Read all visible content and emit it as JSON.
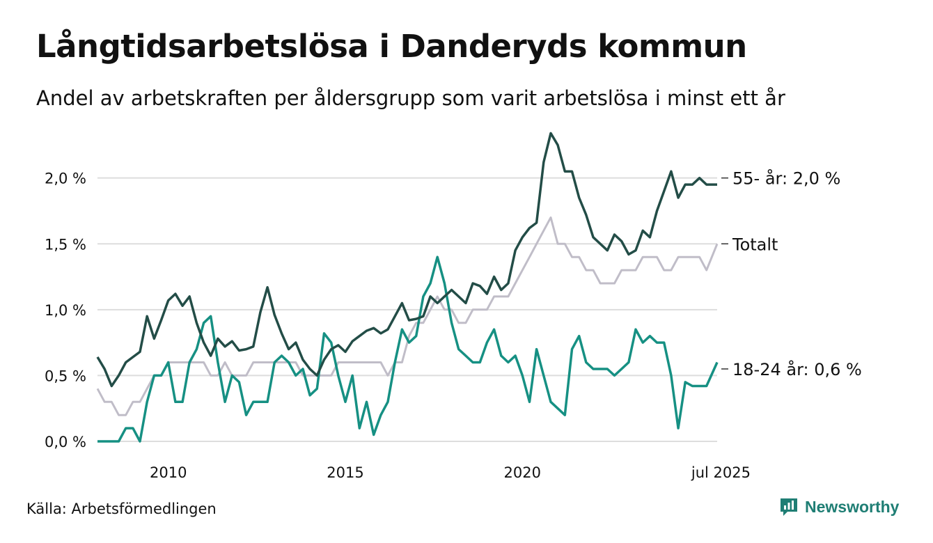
{
  "title": "Långtidsarbetslösa i Danderyds kommun",
  "subtitle": "Andel av arbetskraften per åldersgrupp som varit arbetslösa i minst ett år",
  "source": "Källa: Arbetsförmedlingen",
  "brand": "Newsworthy",
  "colors": {
    "s55": "#234d47",
    "total": "#c0bdc8",
    "s1824": "#169083",
    "grid": "#dddddd",
    "brand": "#1f7e74"
  },
  "chart_data": {
    "type": "line",
    "xlim": [
      2008.0,
      2025.5
    ],
    "ylim": [
      0,
      2.4
    ],
    "yticks": [
      {
        "value": 0.0,
        "label": "0,0 %"
      },
      {
        "value": 0.5,
        "label": "0,5 %"
      },
      {
        "value": 1.0,
        "label": "1,0 %"
      },
      {
        "value": 1.5,
        "label": "1,5 %"
      },
      {
        "value": 2.0,
        "label": "2,0 %"
      }
    ],
    "xticks": [
      {
        "value": 2010,
        "label": "2010"
      },
      {
        "value": 2015,
        "label": "2015"
      },
      {
        "value": 2020,
        "label": "2020"
      },
      {
        "value": 2025.5,
        "label": "jul 2025"
      }
    ],
    "grid": true,
    "series": [
      {
        "key": "s55",
        "end_label": "55- år: 2,0 %",
        "x": [
          2008.0,
          2008.2,
          2008.4,
          2008.6,
          2008.8,
          2009.0,
          2009.2,
          2009.4,
          2009.6,
          2009.8,
          2010.0,
          2010.2,
          2010.4,
          2010.6,
          2010.8,
          2011.0,
          2011.2,
          2011.4,
          2011.6,
          2011.8,
          2012.0,
          2012.2,
          2012.4,
          2012.6,
          2012.8,
          2013.0,
          2013.2,
          2013.4,
          2013.6,
          2013.8,
          2014.0,
          2014.2,
          2014.4,
          2014.6,
          2014.8,
          2015.0,
          2015.2,
          2015.4,
          2015.6,
          2015.8,
          2016.0,
          2016.2,
          2016.4,
          2016.6,
          2016.8,
          2017.0,
          2017.2,
          2017.4,
          2017.6,
          2017.8,
          2018.0,
          2018.2,
          2018.4,
          2018.6,
          2018.8,
          2019.0,
          2019.2,
          2019.4,
          2019.6,
          2019.8,
          2020.0,
          2020.2,
          2020.4,
          2020.6,
          2020.8,
          2021.0,
          2021.2,
          2021.4,
          2021.6,
          2021.8,
          2022.0,
          2022.2,
          2022.4,
          2022.6,
          2022.8,
          2023.0,
          2023.2,
          2023.4,
          2023.6,
          2023.8,
          2024.0,
          2024.2,
          2024.4,
          2024.6,
          2024.8,
          2025.0,
          2025.2,
          2025.5
        ],
        "y": [
          0.64,
          0.55,
          0.42,
          0.5,
          0.6,
          0.64,
          0.68,
          0.95,
          0.78,
          0.92,
          1.07,
          1.12,
          1.03,
          1.1,
          0.9,
          0.75,
          0.65,
          0.78,
          0.72,
          0.76,
          0.69,
          0.7,
          0.72,
          0.98,
          1.17,
          0.96,
          0.82,
          0.7,
          0.75,
          0.62,
          0.55,
          0.5,
          0.62,
          0.7,
          0.73,
          0.68,
          0.76,
          0.8,
          0.84,
          0.86,
          0.82,
          0.85,
          0.95,
          1.05,
          0.92,
          0.93,
          0.95,
          1.1,
          1.05,
          1.1,
          1.15,
          1.1,
          1.05,
          1.2,
          1.18,
          1.12,
          1.25,
          1.15,
          1.2,
          1.45,
          1.55,
          1.62,
          1.66,
          2.12,
          2.34,
          2.25,
          2.05,
          2.05,
          1.85,
          1.72,
          1.55,
          1.5,
          1.45,
          1.57,
          1.52,
          1.42,
          1.45,
          1.6,
          1.55,
          1.75,
          1.9,
          2.05,
          1.85,
          1.95,
          1.95,
          2.0,
          1.95,
          1.95
        ]
      },
      {
        "key": "total",
        "end_label": "Totalt",
        "x": [
          2008.0,
          2008.2,
          2008.4,
          2008.6,
          2008.8,
          2009.0,
          2009.2,
          2009.4,
          2009.6,
          2009.8,
          2010.0,
          2010.2,
          2010.4,
          2010.6,
          2010.8,
          2011.0,
          2011.2,
          2011.4,
          2011.6,
          2011.8,
          2012.0,
          2012.2,
          2012.4,
          2012.6,
          2012.8,
          2013.0,
          2013.2,
          2013.4,
          2013.6,
          2013.8,
          2014.0,
          2014.2,
          2014.4,
          2014.6,
          2014.8,
          2015.0,
          2015.2,
          2015.4,
          2015.6,
          2015.8,
          2016.0,
          2016.2,
          2016.4,
          2016.6,
          2016.8,
          2017.0,
          2017.2,
          2017.4,
          2017.6,
          2017.8,
          2018.0,
          2018.2,
          2018.4,
          2018.6,
          2018.8,
          2019.0,
          2019.2,
          2019.4,
          2019.6,
          2019.8,
          2020.0,
          2020.2,
          2020.4,
          2020.6,
          2020.8,
          2021.0,
          2021.2,
          2021.4,
          2021.6,
          2021.8,
          2022.0,
          2022.2,
          2022.4,
          2022.6,
          2022.8,
          2023.0,
          2023.2,
          2023.4,
          2023.6,
          2023.8,
          2024.0,
          2024.2,
          2024.4,
          2024.6,
          2024.8,
          2025.0,
          2025.2,
          2025.5
        ],
        "y": [
          0.4,
          0.3,
          0.3,
          0.2,
          0.2,
          0.3,
          0.3,
          0.4,
          0.5,
          0.5,
          0.6,
          0.6,
          0.6,
          0.6,
          0.6,
          0.6,
          0.5,
          0.5,
          0.6,
          0.5,
          0.5,
          0.5,
          0.6,
          0.6,
          0.6,
          0.6,
          0.6,
          0.6,
          0.6,
          0.5,
          0.5,
          0.5,
          0.5,
          0.5,
          0.6,
          0.6,
          0.6,
          0.6,
          0.6,
          0.6,
          0.6,
          0.5,
          0.6,
          0.6,
          0.8,
          0.9,
          0.9,
          1.0,
          1.1,
          1.0,
          1.0,
          0.9,
          0.9,
          1.0,
          1.0,
          1.0,
          1.1,
          1.1,
          1.1,
          1.2,
          1.3,
          1.4,
          1.5,
          1.6,
          1.7,
          1.5,
          1.5,
          1.4,
          1.4,
          1.3,
          1.3,
          1.2,
          1.2,
          1.2,
          1.3,
          1.3,
          1.3,
          1.4,
          1.4,
          1.4,
          1.3,
          1.3,
          1.4,
          1.4,
          1.4,
          1.4,
          1.3,
          1.5
        ]
      },
      {
        "key": "s1824",
        "end_label": "18-24 år: 0,6 %",
        "x": [
          2008.0,
          2008.2,
          2008.4,
          2008.6,
          2008.8,
          2009.0,
          2009.2,
          2009.4,
          2009.6,
          2009.8,
          2010.0,
          2010.2,
          2010.4,
          2010.6,
          2010.8,
          2011.0,
          2011.2,
          2011.4,
          2011.6,
          2011.8,
          2012.0,
          2012.2,
          2012.4,
          2012.6,
          2012.8,
          2013.0,
          2013.2,
          2013.4,
          2013.6,
          2013.8,
          2014.0,
          2014.2,
          2014.4,
          2014.6,
          2014.8,
          2015.0,
          2015.2,
          2015.4,
          2015.6,
          2015.8,
          2016.0,
          2016.2,
          2016.4,
          2016.6,
          2016.8,
          2017.0,
          2017.2,
          2017.4,
          2017.6,
          2017.8,
          2018.0,
          2018.2,
          2018.4,
          2018.6,
          2018.8,
          2019.0,
          2019.2,
          2019.4,
          2019.6,
          2019.8,
          2020.0,
          2020.2,
          2020.4,
          2020.6,
          2020.8,
          2021.0,
          2021.2,
          2021.4,
          2021.6,
          2021.8,
          2022.0,
          2022.2,
          2022.4,
          2022.6,
          2022.8,
          2023.0,
          2023.2,
          2023.4,
          2023.6,
          2023.8,
          2024.0,
          2024.2,
          2024.4,
          2024.6,
          2024.8,
          2025.0,
          2025.2,
          2025.5
        ],
        "y": [
          0.0,
          0.0,
          0.0,
          0.0,
          0.1,
          0.1,
          0.0,
          0.3,
          0.5,
          0.5,
          0.6,
          0.3,
          0.3,
          0.6,
          0.7,
          0.9,
          0.95,
          0.6,
          0.3,
          0.5,
          0.45,
          0.2,
          0.3,
          0.3,
          0.3,
          0.6,
          0.65,
          0.6,
          0.5,
          0.55,
          0.35,
          0.4,
          0.82,
          0.75,
          0.5,
          0.3,
          0.5,
          0.1,
          0.3,
          0.05,
          0.2,
          0.3,
          0.6,
          0.85,
          0.75,
          0.8,
          1.1,
          1.2,
          1.4,
          1.2,
          0.9,
          0.7,
          0.65,
          0.6,
          0.6,
          0.75,
          0.85,
          0.65,
          0.6,
          0.65,
          0.5,
          0.3,
          0.7,
          0.5,
          0.3,
          0.25,
          0.2,
          0.7,
          0.8,
          0.6,
          0.55,
          0.55,
          0.55,
          0.5,
          0.55,
          0.6,
          0.85,
          0.75,
          0.8,
          0.75,
          0.75,
          0.5,
          0.1,
          0.45,
          0.42,
          0.42,
          0.42,
          0.6
        ]
      }
    ]
  }
}
